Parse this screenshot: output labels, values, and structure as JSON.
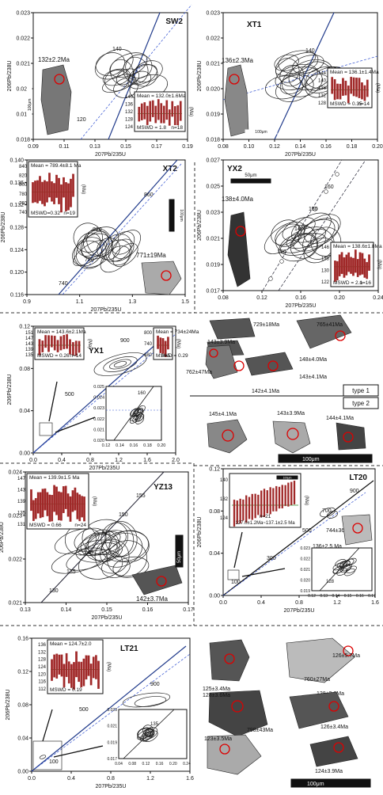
{
  "chart_data": [
    {
      "type": "scatter",
      "title": "SW2",
      "xlabel": "207Pb/235U",
      "ylabel": "206Pb/238U",
      "xlim": [
        0.09,
        0.2
      ],
      "ylim": [
        0.018,
        0.023
      ],
      "x_ticks": [
        "0.09",
        "0.11",
        "0.13",
        "0.15",
        "0.17",
        "0.19"
      ],
      "y_ticks": [
        "0.018",
        "0.019",
        "0.020",
        "0.021",
        "0.022",
        "0.023"
      ],
      "concordia_labels": [
        "140",
        "120"
      ],
      "age_label": "132±2.2Ma",
      "inset": {
        "mean": "Mean = 132.0±1.6Ma",
        "mswd": "MSWD = 1.8",
        "n": "n=18",
        "y_ticks": [
          "140",
          "136",
          "132",
          "128",
          "124"
        ],
        "unit": "(Ma)"
      },
      "scale_bar": "100μm"
    },
    {
      "type": "scatter",
      "title": "XT1",
      "xlabel": "207Pb/235U",
      "ylabel": "206Pb/238U",
      "xlim": [
        0.08,
        0.2
      ],
      "ylim": [
        0.018,
        0.023
      ],
      "x_ticks": [
        "0.08",
        "0.10",
        "0.12",
        "0.14",
        "0.16",
        "0.18",
        "0.20"
      ],
      "y_ticks": [
        "0.018",
        "0.019",
        "0.020",
        "0.021",
        "0.022",
        "0.023"
      ],
      "concordia_labels": [
        "140"
      ],
      "age_label": "136±2.3Ma",
      "inset": {
        "mean": "Mean = 136.1±1.4Ma",
        "mswd": "MSWD = 0.35",
        "n": "n=14",
        "y_ticks": [
          "144",
          "140",
          "136",
          "132",
          "128"
        ],
        "unit": "(Ma)"
      },
      "scale_bar": "100μm"
    },
    {
      "type": "scatter",
      "title": "XT2",
      "xlabel": "207Pb/235U",
      "ylabel": "206Pb/238U",
      "xlim": [
        0.9,
        1.6
      ],
      "ylim": [
        0.116,
        0.14
      ],
      "x_ticks": [
        "0.9",
        "1.1",
        "1.3",
        "1.5"
      ],
      "y_ticks": [
        "0.116",
        "0.120",
        "0.124",
        "0.128",
        "0.132",
        "0.136",
        "0.140"
      ],
      "concordia_labels": [
        "860",
        "820",
        "780",
        "740"
      ],
      "age_label": "771±19Ma",
      "inset": {
        "mean": "Mean = 789.4±8.1 Ma",
        "mswd": "MSWD=0.32",
        "n": "n=19",
        "y_ticks": [
          "840",
          "820",
          "800",
          "780",
          "760",
          "740"
        ],
        "unit": "(Ma)"
      },
      "scale_bar": "100μm"
    },
    {
      "type": "scatter",
      "title": "YX2",
      "xlabel": "207Pb/235U",
      "ylabel": "206Pb/238U",
      "xlim": [
        0.08,
        0.25
      ],
      "ylim": [
        0.017,
        0.027
      ],
      "x_ticks": [
        "0.08",
        "0.12",
        "0.16",
        "0.20",
        "0.24"
      ],
      "y_ticks": [
        "0.017",
        "0.019",
        "0.021",
        "0.023",
        "0.025",
        "0.027"
      ],
      "concordia_labels": [
        "160",
        "150",
        "140",
        "130"
      ],
      "age_label": "138±4.0Ma",
      "inset": {
        "mean": "Mean = 138.6±1.8Ma",
        "mswd": "MSWD = 2.1",
        "n": "n=16",
        "y_ticks": [
          "146",
          "138",
          "130",
          "122"
        ],
        "unit": "(Ma)"
      },
      "scale_bar": "50μm"
    },
    {
      "type": "scatter",
      "title": "YX1",
      "xlabel": "207Pb/235U",
      "ylabel": "206Pb/238U",
      "xlim": [
        0,
        2.2
      ],
      "ylim": [
        0,
        0.15
      ],
      "x_ticks": [
        "0.0",
        "0.4",
        "0.8",
        "1.2",
        "1.6",
        "2.0"
      ],
      "y_ticks": [
        "0.00",
        "0.04",
        "0.08",
        "0.12"
      ],
      "concordia_labels": [
        "900",
        "500"
      ],
      "inset1": {
        "mean": "Mean = 143.6±2.1Ma",
        "mswd": "MSWD = 0.26",
        "n": "n=14",
        "y_ticks": [
          "151",
          "147",
          "143",
          "139",
          "135"
        ],
        "unit": "(Ma)"
      },
      "inset2": {
        "mean": "Mean = 734±24Ma",
        "mswd": "MSWD = 0.29",
        "n": "n=5",
        "y_ticks": [
          "800",
          "740",
          "680"
        ],
        "unit": "(Ma)"
      },
      "inset3": {
        "x_ticks": [
          "0.12",
          "0.14",
          "0.16",
          "0.18",
          "0.20"
        ],
        "y_ticks": [
          "0.020",
          "0.021",
          "0.022",
          "0.023",
          "0.024",
          "0.025"
        ],
        "labels": [
          "160"
        ]
      },
      "grains": [
        "729±18Ma",
        "765±41Ma",
        "143±3.9Ma",
        "148±4.0Ma",
        "762±47Ma",
        "142±4.1Ma",
        "143±4.1Ma",
        "145±4.1Ma",
        "143±3.9Ma",
        "144±4.1Ma"
      ],
      "types": [
        "type 1",
        "type 2"
      ],
      "scale_bar": "100μm"
    },
    {
      "type": "scatter",
      "title": "YZ13",
      "xlabel": "207Pb/235U",
      "ylabel": "206Pb/238U",
      "xlim": [
        0.13,
        0.17
      ],
      "ylim": [
        0.0205,
        0.0248
      ],
      "x_ticks": [
        "0.13",
        "0.14",
        "0.15",
        "0.16",
        "0.17"
      ],
      "y_ticks": [
        "0.021",
        "0.022",
        "0.023",
        "0.024"
      ],
      "concordia_labels": [
        "155",
        "150",
        "145",
        "140",
        "135",
        "130"
      ],
      "age_label": "142±3.7Ma",
      "inset": {
        "mean": "Mean = 139.9±1.5 Ma",
        "mswd": "MSWD = 0.66",
        "n": "n=24",
        "y_ticks": [
          "147",
          "143",
          "139",
          "135",
          "131"
        ],
        "unit": "(Ma)"
      },
      "scale_bar": "50μm"
    },
    {
      "type": "scatter",
      "title": "LT20",
      "xlabel": "207Pb/235U",
      "ylabel": "206Pb/238U",
      "xlim": [
        0,
        1.6
      ],
      "ylim": [
        0,
        0.14
      ],
      "x_ticks": [
        "0.0",
        "0.4",
        "0.8",
        "1.2",
        "1.6"
      ],
      "y_ticks": [
        "0.00",
        "0.04",
        "0.08",
        "0.12"
      ],
      "concordia_labels": [
        "900",
        "700",
        "500",
        "300",
        "100"
      ],
      "age_labels": [
        "744±36 Ma",
        "136±2.5 Ma"
      ],
      "inset": {
        "n": "n=21",
        "mean": "127.0±1.2Ma~137.1±2.5 Ma",
        "y_ticks": [
          "140",
          "132",
          "124"
        ],
        "unit": "(Ma)",
        "scale_bar": "100μm"
      },
      "inset2": {
        "x_ticks": [
          "0.12",
          "0.13",
          "0.14",
          "0.15",
          "0.16",
          "0.17"
        ],
        "y_ticks": [
          "0.019",
          "0.020",
          "0.021",
          "0.022",
          "0.023"
        ],
        "labels": [
          "128"
        ]
      }
    },
    {
      "type": "scatter",
      "title": "LT21",
      "xlabel": "207Pb/235U",
      "ylabel": "206Pb/238U",
      "xlim": [
        0,
        1.6
      ],
      "ylim": [
        0,
        0.16
      ],
      "x_ticks": [
        "0.0",
        "0.4",
        "0.8",
        "1.2",
        "1.6"
      ],
      "y_ticks": [
        "0.00",
        "0.04",
        "0.08",
        "0.12",
        "0.16"
      ],
      "concordia_labels": [
        "900",
        "500",
        "100"
      ],
      "inset": {
        "mean": "Mean = 124.7±2.0",
        "mswd": "MSWD = 0.19",
        "y_ticks": [
          "136",
          "132",
          "128",
          "124",
          "120",
          "116",
          "112"
        ],
        "unit": "(Ma)"
      },
      "inset2": {
        "x_ticks": [
          "0.04",
          "0.08",
          "0.12",
          "0.16",
          "0.20",
          "0.24"
        ],
        "y_ticks": [
          "0.017",
          "0.019",
          "0.021",
          "0.023"
        ],
        "labels": [
          "135"
        ]
      },
      "grains": [
        "126±5.7Ma",
        "125±3.4Ma",
        "760±27Ma",
        "128±3.6Ma",
        "128±3.6Ma",
        "798±43Ma",
        "126±3.4Ma",
        "123±3.5Ma",
        "124±3.9Ma"
      ],
      "scale_bar": "100μm"
    }
  ]
}
